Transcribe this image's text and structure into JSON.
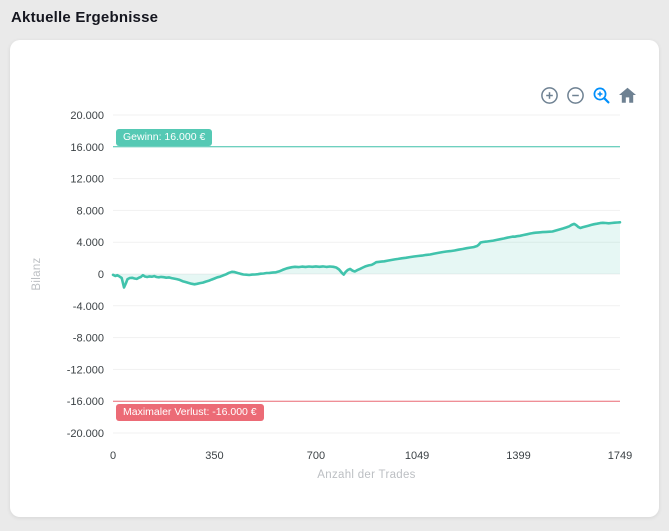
{
  "header": {
    "title": "Aktuelle Ergebnisse"
  },
  "toolbar": {
    "idle_color": "#6e8192",
    "active_color": "#008ffb",
    "icons": [
      {
        "name": "zoom-in-icon"
      },
      {
        "name": "zoom-out-icon"
      },
      {
        "name": "selection-zoom-icon",
        "active": true
      },
      {
        "name": "home-icon"
      }
    ]
  },
  "chart_data": {
    "type": "area",
    "title": "",
    "xlabel": "Anzahl der Trades",
    "ylabel": "Bilanz",
    "xlim": [
      0,
      1749
    ],
    "ylim": [
      -20000,
      20000
    ],
    "grid": true,
    "grid_color": "#f1f1f1",
    "line_color": "#41c3ac",
    "fill_color": "rgba(65,195,172,0.13)",
    "x_ticks": [
      0,
      350,
      700,
      1049,
      1399,
      1749
    ],
    "x_tick_labels": [
      "0",
      "350",
      "700",
      "1049",
      "1399",
      "1749"
    ],
    "y_ticks": [
      20000,
      16000,
      12000,
      8000,
      4000,
      0,
      -4000,
      -8000,
      -12000,
      -16000,
      -20000
    ],
    "y_tick_labels": [
      "20.000",
      "16.000",
      "12.000",
      "8.000",
      "4.000",
      "0",
      "-4.000",
      "-8.000",
      "-12.000",
      "-16.000",
      "-20.000"
    ],
    "annotations": [
      {
        "y": 16000,
        "color": "#41c3ac",
        "label": "Gewinn: 16.000 €"
      },
      {
        "y": -16000,
        "color": "#ec6b76",
        "label": "Maximaler Verlust: -16.000 €"
      }
    ],
    "series": [
      {
        "name": "Bilanz",
        "points": [
          [
            0,
            -100
          ],
          [
            8,
            -250
          ],
          [
            15,
            -150
          ],
          [
            22,
            -300
          ],
          [
            30,
            -500
          ],
          [
            38,
            -1700
          ],
          [
            44,
            -1200
          ],
          [
            50,
            -650
          ],
          [
            58,
            -500
          ],
          [
            66,
            -480
          ],
          [
            74,
            -560
          ],
          [
            82,
            -620
          ],
          [
            90,
            -450
          ],
          [
            96,
            -380
          ],
          [
            103,
            -150
          ],
          [
            110,
            -320
          ],
          [
            118,
            -380
          ],
          [
            126,
            -300
          ],
          [
            134,
            -340
          ],
          [
            142,
            -260
          ],
          [
            150,
            -380
          ],
          [
            158,
            -420
          ],
          [
            166,
            -360
          ],
          [
            175,
            -400
          ],
          [
            184,
            -460
          ],
          [
            193,
            -430
          ],
          [
            202,
            -520
          ],
          [
            211,
            -580
          ],
          [
            220,
            -640
          ],
          [
            230,
            -740
          ],
          [
            240,
            -900
          ],
          [
            250,
            -1000
          ],
          [
            260,
            -1120
          ],
          [
            270,
            -1220
          ],
          [
            281,
            -1300
          ],
          [
            290,
            -1230
          ],
          [
            300,
            -1140
          ],
          [
            310,
            -1080
          ],
          [
            320,
            -950
          ],
          [
            330,
            -850
          ],
          [
            340,
            -700
          ],
          [
            350,
            -560
          ],
          [
            360,
            -420
          ],
          [
            370,
            -330
          ],
          [
            380,
            -180
          ],
          [
            390,
            -40
          ],
          [
            400,
            150
          ],
          [
            410,
            280
          ],
          [
            420,
            240
          ],
          [
            430,
            120
          ],
          [
            440,
            30
          ],
          [
            450,
            -60
          ],
          [
            460,
            -90
          ],
          [
            470,
            -120
          ],
          [
            480,
            -80
          ],
          [
            490,
            -60
          ],
          [
            500,
            -20
          ],
          [
            510,
            40
          ],
          [
            520,
            60
          ],
          [
            530,
            120
          ],
          [
            540,
            140
          ],
          [
            550,
            170
          ],
          [
            562,
            220
          ],
          [
            573,
            330
          ],
          [
            585,
            520
          ],
          [
            600,
            720
          ],
          [
            617,
            850
          ],
          [
            628,
            900
          ],
          [
            640,
            870
          ],
          [
            652,
            930
          ],
          [
            664,
            890
          ],
          [
            676,
            940
          ],
          [
            688,
            910
          ],
          [
            700,
            960
          ],
          [
            712,
            900
          ],
          [
            724,
            950
          ],
          [
            736,
            890
          ],
          [
            748,
            940
          ],
          [
            760,
            900
          ],
          [
            770,
            820
          ],
          [
            780,
            560
          ],
          [
            790,
            120
          ],
          [
            796,
            -80
          ],
          [
            802,
            240
          ],
          [
            810,
            520
          ],
          [
            818,
            640
          ],
          [
            826,
            430
          ],
          [
            834,
            320
          ],
          [
            842,
            480
          ],
          [
            852,
            640
          ],
          [
            862,
            820
          ],
          [
            872,
            980
          ],
          [
            882,
            1080
          ],
          [
            892,
            1150
          ],
          [
            900,
            1300
          ],
          [
            908,
            1480
          ],
          [
            916,
            1520
          ],
          [
            926,
            1560
          ],
          [
            936,
            1600
          ],
          [
            948,
            1680
          ],
          [
            960,
            1760
          ],
          [
            972,
            1840
          ],
          [
            984,
            1900
          ],
          [
            996,
            1980
          ],
          [
            1010,
            2040
          ],
          [
            1024,
            2120
          ],
          [
            1038,
            2200
          ],
          [
            1052,
            2260
          ],
          [
            1066,
            2320
          ],
          [
            1080,
            2400
          ],
          [
            1094,
            2450
          ],
          [
            1108,
            2570
          ],
          [
            1122,
            2660
          ],
          [
            1136,
            2760
          ],
          [
            1150,
            2830
          ],
          [
            1164,
            2880
          ],
          [
            1178,
            2960
          ],
          [
            1192,
            3060
          ],
          [
            1206,
            3140
          ],
          [
            1220,
            3240
          ],
          [
            1232,
            3320
          ],
          [
            1244,
            3380
          ],
          [
            1256,
            3520
          ],
          [
            1262,
            3700
          ],
          [
            1268,
            3960
          ],
          [
            1276,
            4020
          ],
          [
            1288,
            4080
          ],
          [
            1300,
            4140
          ],
          [
            1312,
            4200
          ],
          [
            1324,
            4290
          ],
          [
            1336,
            4380
          ],
          [
            1348,
            4470
          ],
          [
            1360,
            4560
          ],
          [
            1372,
            4660
          ],
          [
            1379,
            4710
          ],
          [
            1386,
            4690
          ],
          [
            1394,
            4760
          ],
          [
            1404,
            4810
          ],
          [
            1416,
            4900
          ],
          [
            1428,
            4990
          ],
          [
            1440,
            5090
          ],
          [
            1448,
            5150
          ],
          [
            1458,
            5190
          ],
          [
            1470,
            5230
          ],
          [
            1482,
            5270
          ],
          [
            1494,
            5300
          ],
          [
            1506,
            5320
          ],
          [
            1516,
            5350
          ],
          [
            1528,
            5470
          ],
          [
            1540,
            5600
          ],
          [
            1552,
            5720
          ],
          [
            1564,
            5860
          ],
          [
            1574,
            6000
          ],
          [
            1582,
            6180
          ],
          [
            1591,
            6300
          ],
          [
            1598,
            6150
          ],
          [
            1606,
            5900
          ],
          [
            1612,
            5780
          ],
          [
            1620,
            5880
          ],
          [
            1630,
            5980
          ],
          [
            1640,
            6080
          ],
          [
            1650,
            6170
          ],
          [
            1660,
            6260
          ],
          [
            1670,
            6330
          ],
          [
            1680,
            6400
          ],
          [
            1690,
            6440
          ],
          [
            1700,
            6410
          ],
          [
            1710,
            6380
          ],
          [
            1720,
            6420
          ],
          [
            1730,
            6450
          ],
          [
            1740,
            6480
          ],
          [
            1749,
            6500
          ]
        ]
      }
    ]
  }
}
